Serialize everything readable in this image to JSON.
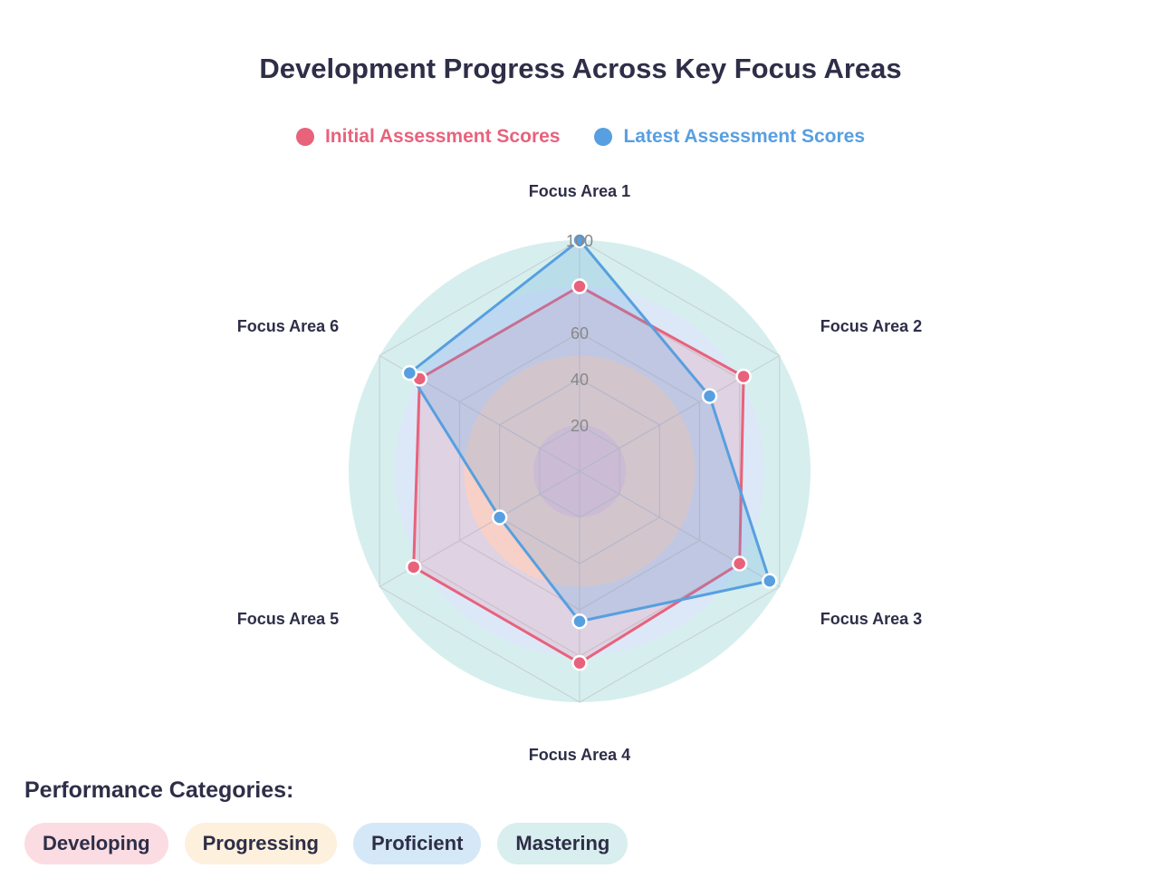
{
  "chart_data": {
    "type": "radar",
    "title": "Development Progress Across Key Focus Areas",
    "axes": [
      "Focus Area 1",
      "Focus Area 2",
      "Focus Area 3",
      "Focus Area 4",
      "Focus Area 5",
      "Focus Area 6"
    ],
    "rlim": [
      0,
      100
    ],
    "ticks": [
      "20",
      "40",
      "60",
      "100"
    ],
    "grid": true,
    "legend_position": "top",
    "series": [
      {
        "name": "Initial Assessment Scores",
        "color": "#e8627c",
        "values": [
          80,
          82,
          80,
          83,
          83,
          80
        ]
      },
      {
        "name": "Latest Assessment Scores",
        "color": "#579fe0",
        "values": [
          100,
          65,
          95,
          65,
          40,
          85
        ]
      }
    ],
    "bands": [
      {
        "r": 100,
        "color": "#d6efee"
      },
      {
        "r": 80,
        "color": "#dce8f8"
      },
      {
        "r": 50,
        "color": "#fbe6d6"
      },
      {
        "r": 20,
        "color": "#efd6e2"
      }
    ]
  },
  "categories": {
    "heading": "Performance Categories:",
    "items": [
      {
        "label": "Developing",
        "color": "#fbdce2"
      },
      {
        "label": "Progressing",
        "color": "#fdf0dd"
      },
      {
        "label": "Proficient",
        "color": "#d5e8f8"
      },
      {
        "label": "Mastering",
        "color": "#d9eeee"
      }
    ]
  }
}
